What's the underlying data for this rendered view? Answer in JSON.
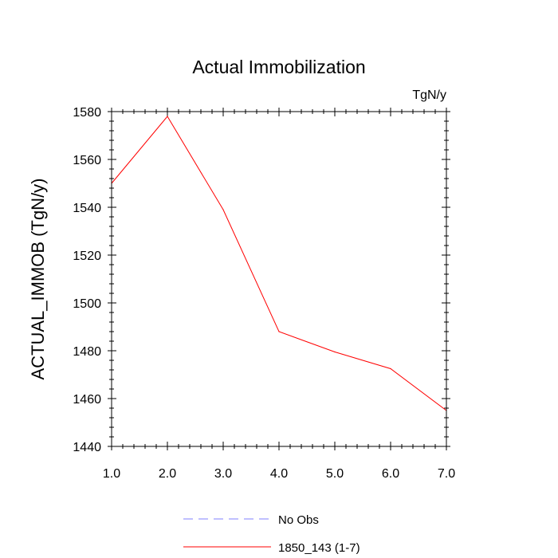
{
  "chart_data": {
    "type": "line",
    "title": "Actual Immobilization",
    "units_label": "TgN/y",
    "xlabel": "",
    "ylabel": "ACTUAL_IMMOB  (TgN/y)",
    "xlim": [
      1.0,
      7.0
    ],
    "ylim": [
      1440,
      1580
    ],
    "x_ticks": [
      1.0,
      2.0,
      3.0,
      4.0,
      5.0,
      6.0,
      7.0
    ],
    "x_tick_labels": [
      "1.0",
      "2.0",
      "3.0",
      "4.0",
      "5.0",
      "6.0",
      "7.0"
    ],
    "y_ticks": [
      1440,
      1460,
      1480,
      1500,
      1520,
      1540,
      1560,
      1580
    ],
    "y_tick_labels": [
      "1440",
      "1460",
      "1480",
      "1500",
      "1520",
      "1540",
      "1560",
      "1580"
    ],
    "grid": false,
    "series": [
      {
        "name": "1850_143 (1-7)",
        "color": "#ff0000",
        "style": "solid",
        "x": [
          1,
          2,
          3,
          4,
          5,
          6,
          7
        ],
        "y": [
          1550,
          1578,
          1539,
          1488,
          1479.5,
          1472.5,
          1455
        ]
      }
    ],
    "legend": {
      "position": "bottom",
      "entries": [
        {
          "label": "No Obs",
          "color": "#8080ff",
          "style": "dashed"
        },
        {
          "label": "1850_143 (1-7)",
          "color": "#ff0000",
          "style": "solid"
        }
      ]
    }
  }
}
